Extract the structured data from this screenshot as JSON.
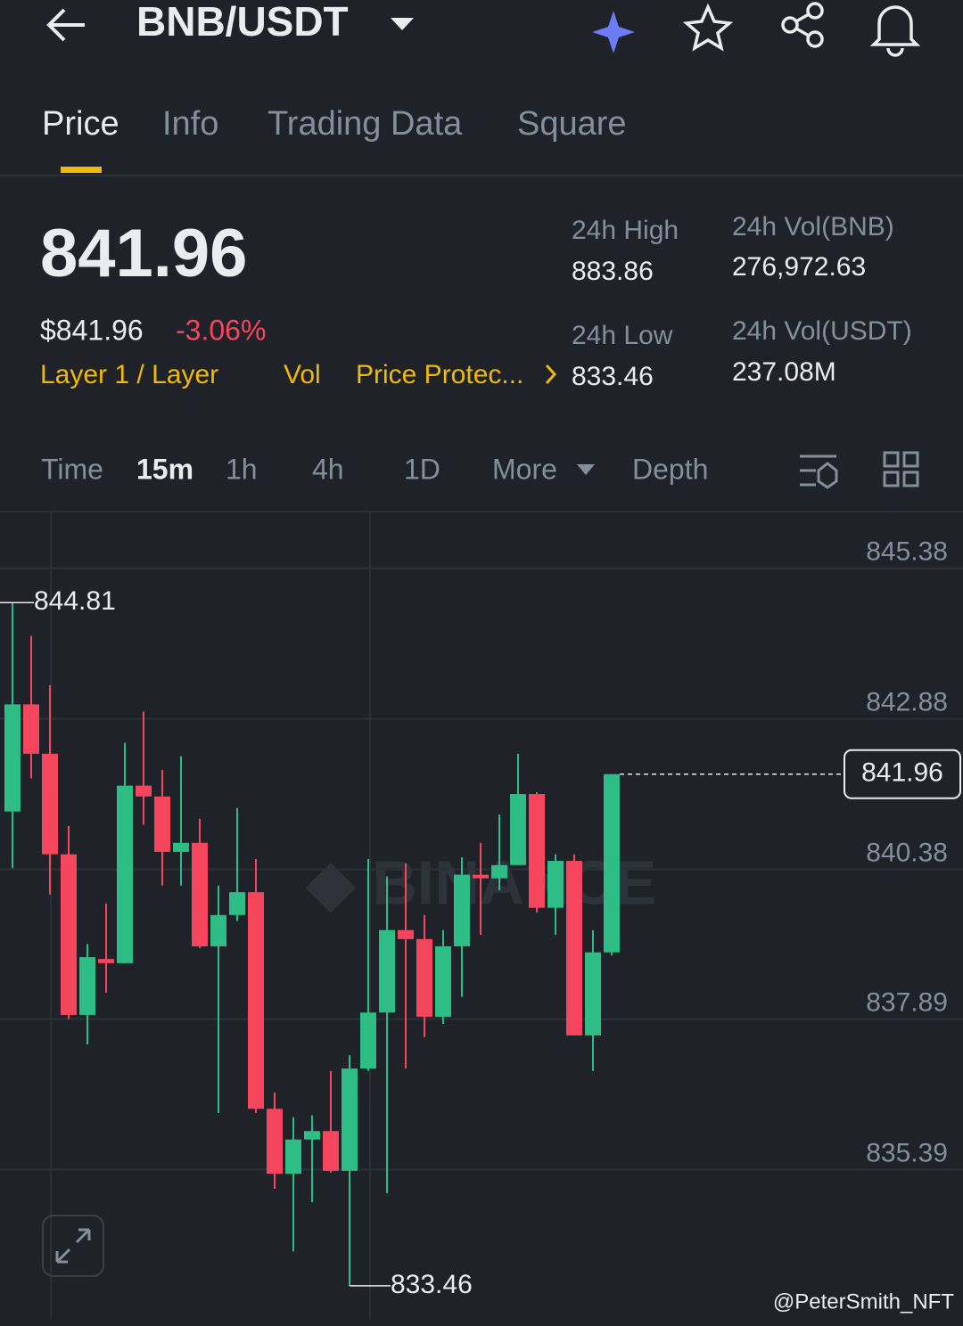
{
  "header": {
    "title": "BNB/USDT"
  },
  "tabs": [
    "Price",
    "Info",
    "Trading Data",
    "Square"
  ],
  "summary": {
    "price": "841.96",
    "usd_price": "$841.96",
    "change": "-3.06%",
    "tags": [
      "Layer 1 / Layer",
      "Vol",
      "Price Protec..."
    ],
    "stats": [
      {
        "label": "24h High",
        "value": "883.86"
      },
      {
        "label": "24h Vol(BNB)",
        "value": "276,972.63"
      },
      {
        "label": "24h Low",
        "value": "833.46"
      },
      {
        "label": "24h Vol(USDT)",
        "value": "237.08M"
      }
    ]
  },
  "intervals": [
    "Time",
    "15m",
    "1h",
    "4h",
    "1D",
    "More",
    "Depth"
  ],
  "watermark": "@PeterSmith_NFT",
  "chart_data": {
    "type": "candlestick",
    "up_color": "#2ebd85",
    "down_color": "#f6465d",
    "grid": true,
    "ylim": [
      832.91,
      846.31
    ],
    "yticks": [
      835.39,
      837.89,
      840.38,
      842.88,
      845.38
    ],
    "open": [
      841.34,
      843.12,
      842.3,
      840.63,
      837.96,
      838.89,
      838.82,
      841.77,
      841.59,
      840.67,
      840.82,
      839.1,
      839.62,
      840.0,
      836.4,
      835.32,
      835.89,
      836.03,
      835.37,
      837.07,
      838.0,
      839.37,
      839.22,
      837.93,
      839.1,
      840.29,
      840.23,
      840.45,
      841.63,
      839.74,
      840.52,
      837.62,
      839.0
    ],
    "close": [
      843.12,
      842.3,
      840.63,
      837.96,
      838.92,
      838.82,
      841.77,
      841.59,
      840.67,
      840.82,
      839.1,
      839.62,
      840.0,
      836.4,
      835.32,
      835.89,
      836.03,
      835.37,
      837.07,
      838.0,
      839.37,
      839.22,
      837.93,
      839.1,
      840.29,
      840.23,
      840.45,
      841.63,
      839.74,
      840.52,
      837.62,
      839.0,
      841.96
    ],
    "high": [
      844.81,
      844.26,
      843.44,
      841.1,
      839.14,
      839.81,
      842.48,
      843.0,
      842.03,
      842.26,
      841.22,
      840.11,
      841.4,
      840.55,
      836.67,
      836.26,
      836.29,
      837.03,
      837.29,
      840.55,
      840.26,
      840.48,
      839.62,
      839.37,
      840.58,
      840.82,
      841.29,
      842.3,
      841.66,
      840.63,
      840.63,
      839.37,
      841.96
    ],
    "low": [
      840.4,
      841.89,
      839.96,
      837.89,
      837.47,
      838.33,
      838.82,
      841.12,
      840.11,
      840.11,
      839.07,
      836.33,
      839.52,
      836.33,
      835.07,
      834.03,
      834.85,
      835.34,
      833.46,
      837.03,
      835.0,
      837.07,
      837.59,
      837.81,
      838.26,
      839.29,
      840.03,
      840.45,
      839.66,
      839.29,
      837.62,
      837.03,
      838.95
    ]
  }
}
